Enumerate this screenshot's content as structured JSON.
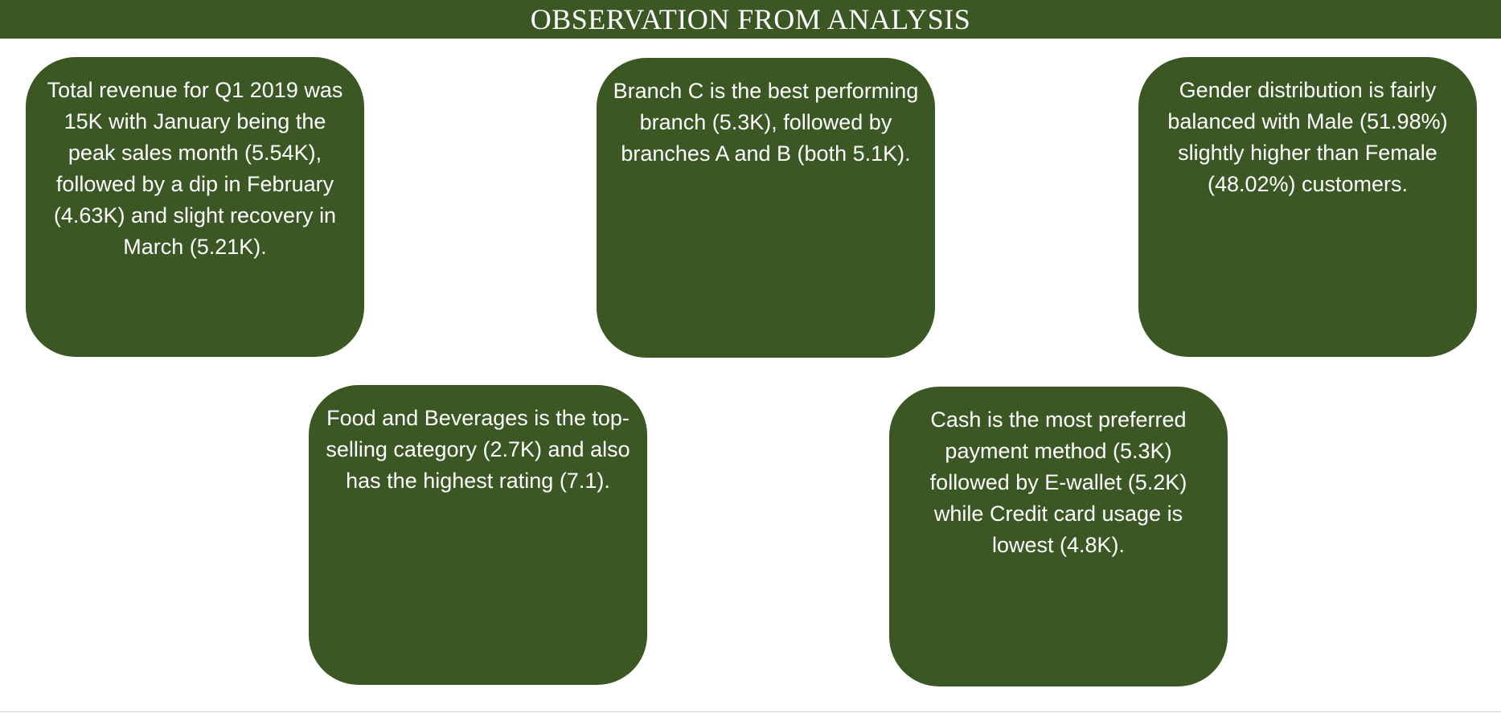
{
  "header": {
    "title": "OBSERVATION FROM ANALYSIS"
  },
  "colors": {
    "card_background": "#3a5724",
    "text": "#ffffff",
    "page_background": "#ffffff"
  },
  "observations": [
    {
      "text": "Total revenue for Q1 2019 was 15K with January being the peak sales month (5.54K), followed by a dip in February (4.63K) and slight recovery in March (5.21K)."
    },
    {
      "text": "Branch C is the best performing branch (5.3K), followed by branches A and B (both 5.1K)."
    },
    {
      "text": "Gender distribution is fairly balanced with Male (51.98%) slightly higher than Female (48.02%) customers."
    },
    {
      "text": "Food and Beverages is the top-selling category (2.7K) and also has the highest rating (7.1)."
    },
    {
      "text": "Cash is the most preferred payment method (5.3K) followed by E-wallet (5.2K) while Credit card usage is lowest (4.8K)."
    }
  ]
}
